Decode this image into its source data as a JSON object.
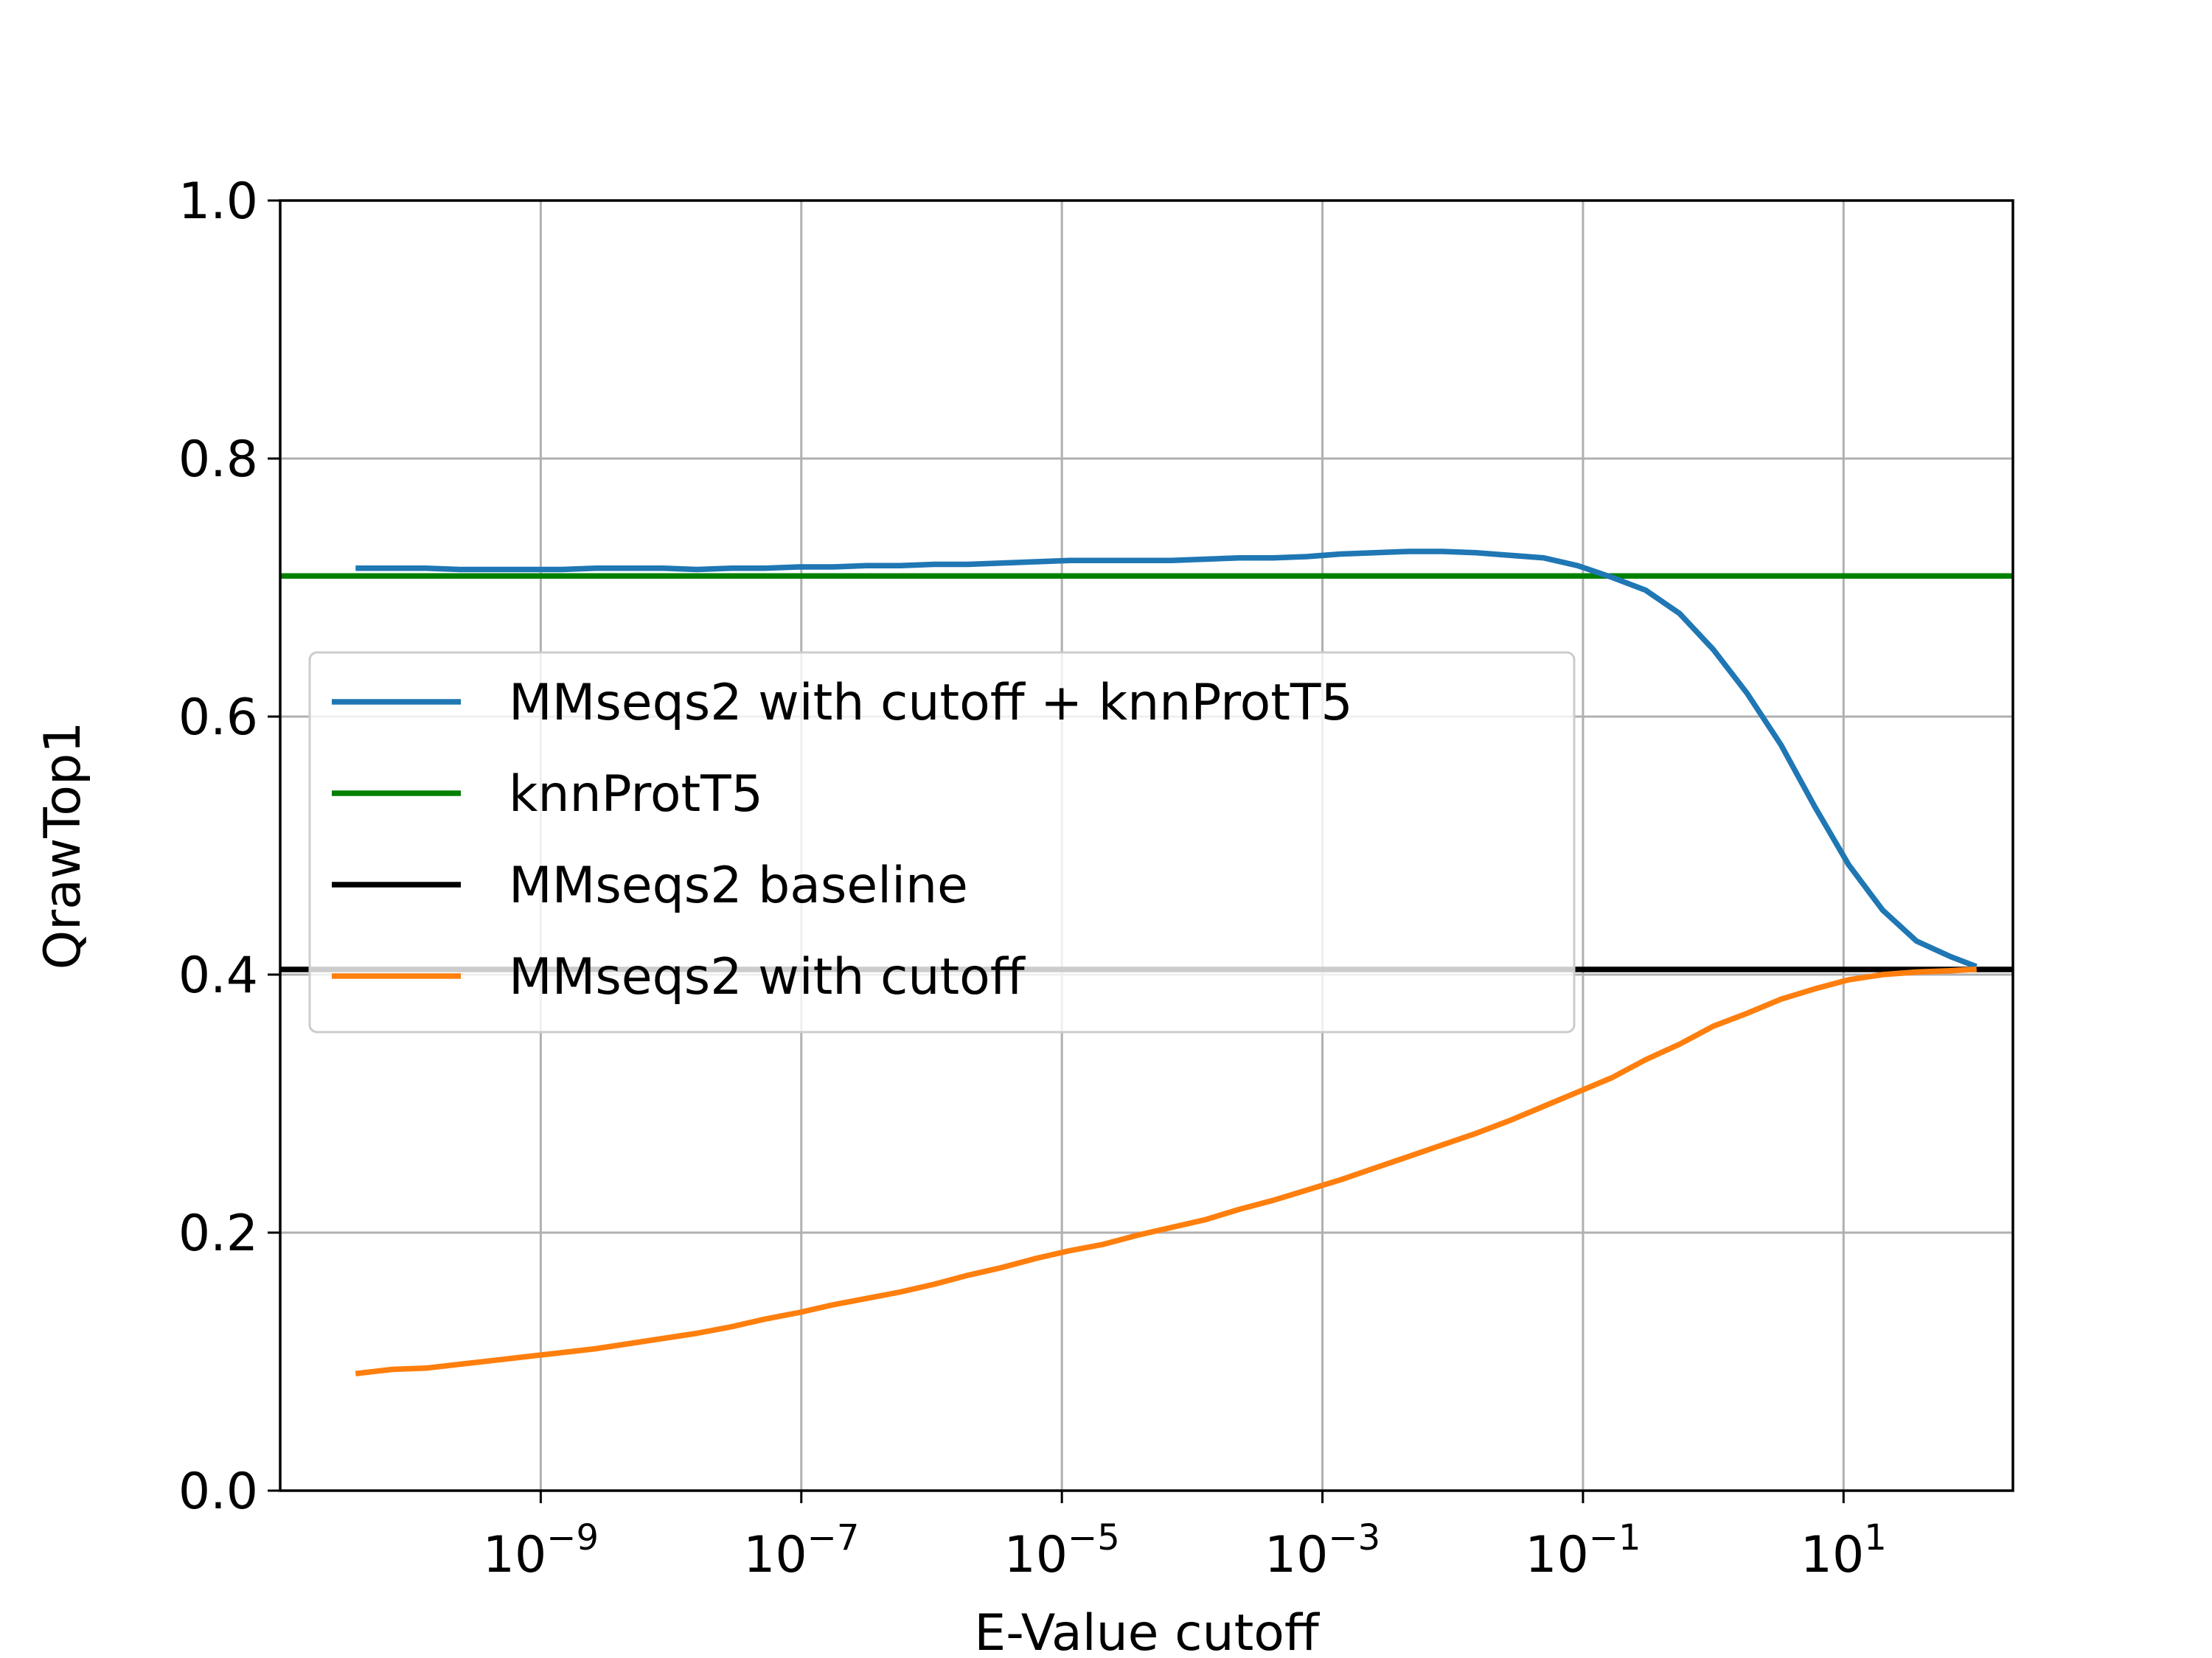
{
  "chart_data": {
    "type": "line",
    "title": "",
    "xlabel": "E-Value cutoff",
    "ylabel": "QrawTop1",
    "xscale": "log",
    "xlim_exponent": [
      -11.0,
      2.3
    ],
    "ylim": [
      0.0,
      1.0
    ],
    "yticks": [
      "0.0",
      "0.2",
      "0.4",
      "0.6",
      "0.8",
      "1.0"
    ],
    "xticks": [
      {
        "exp": -9,
        "base": "10",
        "sup": "−9"
      },
      {
        "exp": -7,
        "base": "10",
        "sup": "−7"
      },
      {
        "exp": -5,
        "base": "10",
        "sup": "−5"
      },
      {
        "exp": -3,
        "base": "10",
        "sup": "−3"
      },
      {
        "exp": -1,
        "base": "10",
        "sup": "−1"
      },
      {
        "exp": 1,
        "base": "10",
        "sup": "1"
      }
    ],
    "grid": true,
    "legend_position": "center-left",
    "series": [
      {
        "name": "MMseqs2 with cutoff + knnProtT5",
        "color": "#1f77b4",
        "kind": "curve",
        "x_exponent": [
          -10.4,
          -10.14,
          -9.88,
          -9.62,
          -9.36,
          -9.1,
          -8.84,
          -8.58,
          -8.32,
          -8.06,
          -7.8,
          -7.54,
          -7.28,
          -7.02,
          -6.76,
          -6.5,
          -6.24,
          -5.98,
          -5.72,
          -5.46,
          -5.2,
          -4.94,
          -4.68,
          -4.42,
          -4.16,
          -3.9,
          -3.64,
          -3.38,
          -3.12,
          -2.86,
          -2.6,
          -2.34,
          -2.08,
          -1.82,
          -1.56,
          -1.3,
          -1.04,
          -0.78,
          -0.52,
          -0.26,
          0.0,
          0.26,
          0.52,
          0.78,
          1.04,
          1.3,
          1.56,
          1.82,
          2.0
        ],
        "y": [
          0.715,
          0.715,
          0.715,
          0.714,
          0.714,
          0.714,
          0.714,
          0.715,
          0.715,
          0.715,
          0.714,
          0.715,
          0.715,
          0.716,
          0.716,
          0.717,
          0.717,
          0.718,
          0.718,
          0.719,
          0.72,
          0.721,
          0.721,
          0.721,
          0.721,
          0.722,
          0.723,
          0.723,
          0.724,
          0.726,
          0.727,
          0.728,
          0.728,
          0.727,
          0.725,
          0.723,
          0.717,
          0.708,
          0.698,
          0.68,
          0.652,
          0.618,
          0.578,
          0.53,
          0.485,
          0.45,
          0.426,
          0.414,
          0.407
        ]
      },
      {
        "name": "knnProtT5",
        "color": "#008000",
        "kind": "hline",
        "y": 0.709
      },
      {
        "name": "MMseqs2 baseline",
        "color": "#000000",
        "kind": "hline",
        "y": 0.404
      },
      {
        "name": "MMseqs2 with cutoff",
        "color": "#ff7f0e",
        "kind": "curve",
        "x_exponent": [
          -10.4,
          -10.14,
          -9.88,
          -9.62,
          -9.36,
          -9.1,
          -8.84,
          -8.58,
          -8.32,
          -8.06,
          -7.8,
          -7.54,
          -7.28,
          -7.02,
          -6.76,
          -6.5,
          -6.24,
          -5.98,
          -5.72,
          -5.46,
          -5.2,
          -4.94,
          -4.68,
          -4.42,
          -4.16,
          -3.9,
          -3.64,
          -3.38,
          -3.12,
          -2.86,
          -2.6,
          -2.34,
          -2.08,
          -1.82,
          -1.56,
          -1.3,
          -1.04,
          -0.78,
          -0.52,
          -0.26,
          0.0,
          0.26,
          0.52,
          0.78,
          1.04,
          1.3,
          1.56,
          1.82,
          2.0
        ],
        "y": [
          0.091,
          0.094,
          0.095,
          0.098,
          0.101,
          0.104,
          0.107,
          0.11,
          0.114,
          0.118,
          0.122,
          0.127,
          0.133,
          0.138,
          0.144,
          0.149,
          0.154,
          0.16,
          0.167,
          0.173,
          0.18,
          0.186,
          0.191,
          0.198,
          0.204,
          0.21,
          0.218,
          0.225,
          0.233,
          0.241,
          0.25,
          0.259,
          0.268,
          0.277,
          0.287,
          0.298,
          0.309,
          0.32,
          0.334,
          0.346,
          0.36,
          0.37,
          0.381,
          0.389,
          0.396,
          0.4,
          0.402,
          0.403,
          0.404
        ]
      }
    ]
  }
}
